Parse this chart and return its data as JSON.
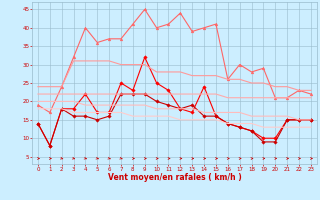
{
  "x": [
    0,
    1,
    2,
    3,
    4,
    5,
    6,
    7,
    8,
    9,
    10,
    11,
    12,
    13,
    14,
    15,
    16,
    17,
    18,
    19,
    20,
    21,
    22,
    23
  ],
  "series": [
    {
      "color": "#ff0000",
      "lw": 0.8,
      "marker": "D",
      "ms": 1.8,
      "values": [
        14,
        8,
        18,
        18,
        22,
        17,
        17,
        25,
        23,
        32,
        25,
        23,
        18,
        17,
        24,
        16,
        14,
        13,
        12,
        10,
        10,
        15,
        15,
        15
      ]
    },
    {
      "color": "#cc0000",
      "lw": 0.8,
      "marker": "D",
      "ms": 1.8,
      "values": [
        14,
        8,
        18,
        16,
        16,
        15,
        16,
        22,
        22,
        22,
        20,
        19,
        18,
        19,
        16,
        16,
        14,
        13,
        12,
        9,
        9,
        15,
        15,
        15
      ]
    },
    {
      "color": "#ff6666",
      "lw": 0.8,
      "marker": "^",
      "ms": 2.0,
      "values": [
        19,
        17,
        24,
        32,
        40,
        36,
        37,
        37,
        41,
        45,
        40,
        41,
        44,
        39,
        40,
        41,
        26,
        30,
        28,
        29,
        21,
        21,
        23,
        22
      ]
    },
    {
      "color": "#ff9999",
      "lw": 0.8,
      "marker": null,
      "ms": 0,
      "values": [
        24,
        24,
        24,
        31,
        31,
        31,
        31,
        30,
        30,
        30,
        28,
        28,
        28,
        27,
        27,
        27,
        26,
        26,
        25,
        25,
        24,
        24,
        23,
        23
      ]
    },
    {
      "color": "#ffaaaa",
      "lw": 0.8,
      "marker": null,
      "ms": 0,
      "values": [
        22,
        22,
        22,
        22,
        22,
        22,
        22,
        22,
        22,
        22,
        22,
        22,
        22,
        22,
        22,
        22,
        21,
        21,
        21,
        21,
        21,
        21,
        21,
        21
      ]
    },
    {
      "color": "#ffbbbb",
      "lw": 0.8,
      "marker": null,
      "ms": 0,
      "values": [
        20,
        20,
        20,
        20,
        19,
        19,
        19,
        19,
        19,
        19,
        18,
        18,
        18,
        18,
        17,
        17,
        17,
        17,
        16,
        16,
        16,
        16,
        15,
        15
      ]
    },
    {
      "color": "#ffcccc",
      "lw": 0.8,
      "marker": null,
      "ms": 0,
      "values": [
        18,
        18,
        18,
        17,
        17,
        17,
        17,
        17,
        16,
        16,
        16,
        16,
        15,
        15,
        15,
        15,
        14,
        14,
        14,
        13,
        13,
        13,
        13,
        13
      ]
    }
  ],
  "xlabel": "Vent moyen/en rafales ( km/h )",
  "xlim": [
    -0.5,
    23.5
  ],
  "ylim": [
    3,
    47
  ],
  "yticks": [
    5,
    10,
    15,
    20,
    25,
    30,
    35,
    40,
    45
  ],
  "xticks": [
    0,
    1,
    2,
    3,
    4,
    5,
    6,
    7,
    8,
    9,
    10,
    11,
    12,
    13,
    14,
    15,
    16,
    17,
    18,
    19,
    20,
    21,
    22,
    23
  ],
  "bg_color": "#cceeff",
  "grid_color": "#99bbcc",
  "tick_color": "#cc0000",
  "label_color": "#cc0000",
  "arrow_color": "#cc0000",
  "arrow_angles_deg": [
    180,
    180,
    135,
    135,
    135,
    135,
    135,
    135,
    180,
    180,
    180,
    180,
    180,
    180,
    180,
    180,
    200,
    200,
    200,
    200,
    200,
    200,
    200,
    180
  ]
}
